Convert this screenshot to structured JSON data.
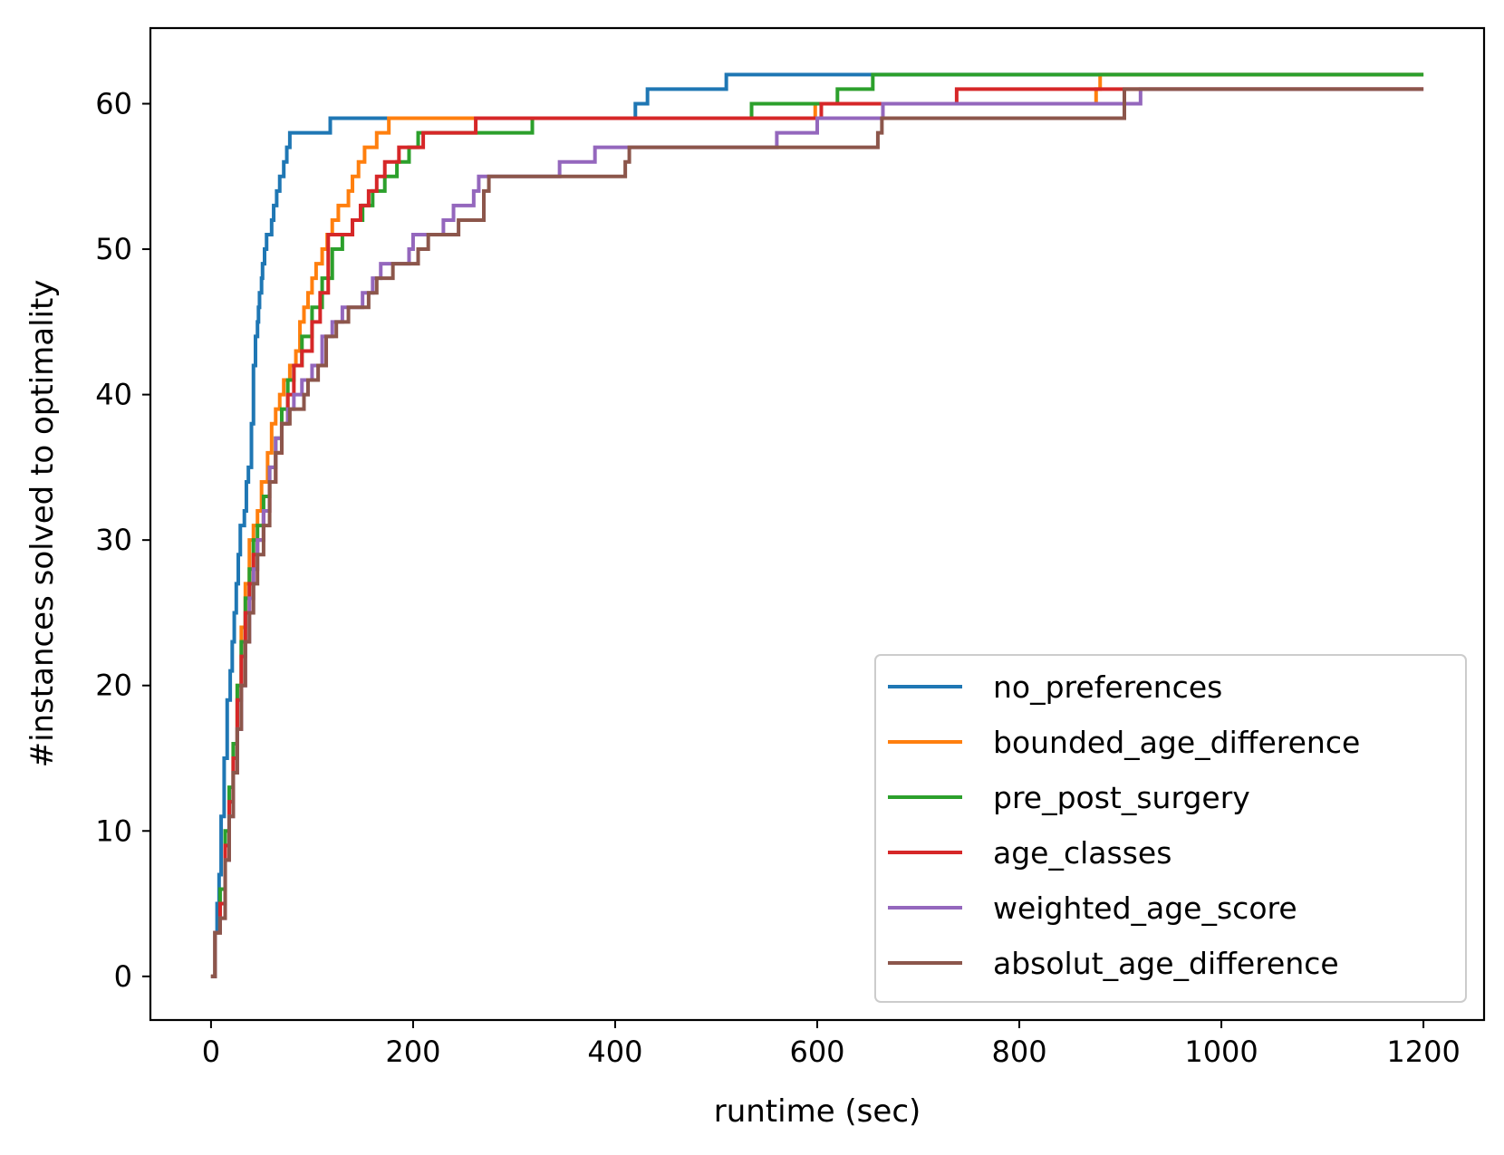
{
  "chart_data": {
    "type": "line",
    "step": "post",
    "title": "",
    "xlabel": "runtime (sec)",
    "ylabel": "#instances solved to optimality",
    "xlim": [
      -60,
      1260
    ],
    "ylim": [
      -3,
      65.2
    ],
    "xticks": [
      0,
      200,
      400,
      600,
      800,
      1000,
      1200
    ],
    "yticks": [
      0,
      10,
      20,
      30,
      40,
      50,
      60
    ],
    "xtick_labels": [
      "0",
      "200",
      "400",
      "600",
      "800",
      "1000",
      "1200"
    ],
    "ytick_labels": [
      "0",
      "10",
      "20",
      "30",
      "40",
      "50",
      "60"
    ],
    "grid": false,
    "legend_position": "lower-right",
    "series": [
      {
        "name": "no_preferences",
        "color": "#1f77b4",
        "x": [
          0,
          4,
          6,
          8,
          10,
          13,
          16,
          19,
          21,
          23,
          25,
          27,
          29,
          31,
          33,
          35,
          37,
          40,
          42,
          44,
          46,
          47,
          48,
          49,
          50,
          51,
          53,
          55,
          58,
          60,
          62,
          65,
          68,
          72,
          75,
          78,
          82,
          85,
          88,
          92,
          96,
          100,
          118,
          122,
          420,
          423,
          432,
          505,
          510,
          1200
        ],
        "y": [
          0,
          3,
          5,
          7,
          11,
          15,
          19,
          21,
          23,
          25,
          27,
          29,
          31,
          31,
          32,
          34,
          35,
          38,
          42,
          44,
          45,
          46,
          47,
          47,
          48,
          49,
          50,
          51,
          51,
          52,
          53,
          54,
          55,
          56,
          57,
          58,
          58,
          58,
          58,
          58,
          58,
          58,
          59,
          59,
          60,
          60,
          61,
          61,
          62,
          62
        ]
      },
      {
        "name": "bounded_age_difference",
        "color": "#ff7f0e",
        "x": [
          0,
          4,
          9,
          14,
          18,
          22,
          26,
          30,
          34,
          38,
          42,
          46,
          50,
          56,
          60,
          64,
          68,
          72,
          78,
          84,
          88,
          92,
          96,
          100,
          104,
          110,
          115,
          120,
          126,
          130,
          136,
          140,
          146,
          152,
          158,
          164,
          170,
          176,
          598,
          602,
          876,
          880,
          1200
        ],
        "y": [
          0,
          3,
          5,
          9,
          12,
          16,
          20,
          24,
          27,
          30,
          31,
          32,
          34,
          36,
          38,
          39,
          40,
          41,
          42,
          43,
          45,
          46,
          47,
          48,
          49,
          50,
          51,
          52,
          53,
          53,
          54,
          55,
          56,
          57,
          57,
          58,
          58,
          59,
          60,
          60,
          61,
          62,
          62
        ]
      },
      {
        "name": "pre_post_surgery",
        "color": "#2ca02c",
        "x": [
          0,
          4,
          9,
          14,
          18,
          22,
          26,
          30,
          34,
          38,
          42,
          46,
          52,
          58,
          64,
          70,
          76,
          82,
          90,
          100,
          110,
          120,
          130,
          140,
          150,
          160,
          172,
          184,
          196,
          200,
          205,
          210,
          260,
          262,
          318,
          322,
          535,
          540,
          600,
          602,
          620,
          625,
          655,
          658,
          1200
        ],
        "y": [
          0,
          3,
          6,
          10,
          13,
          16,
          20,
          23,
          26,
          28,
          30,
          31,
          33,
          35,
          37,
          39,
          41,
          42,
          44,
          46,
          48,
          50,
          51,
          52,
          53,
          54,
          55,
          56,
          57,
          57,
          58,
          58,
          58,
          58,
          59,
          59,
          60,
          60,
          60,
          60,
          61,
          61,
          62,
          62,
          62
        ]
      },
      {
        "name": "age_classes",
        "color": "#d62728",
        "x": [
          0,
          4,
          9,
          14,
          18,
          22,
          26,
          30,
          34,
          38,
          42,
          46,
          52,
          58,
          64,
          70,
          76,
          82,
          90,
          100,
          108,
          116,
          130,
          140,
          148,
          156,
          164,
          172,
          180,
          186,
          190,
          200,
          210,
          218,
          258,
          262,
          600,
          604,
          735,
          738,
          1200
        ],
        "y": [
          0,
          3,
          5,
          9,
          12,
          15,
          19,
          22,
          25,
          27,
          29,
          30,
          32,
          34,
          36,
          38,
          40,
          42,
          43,
          45,
          47,
          51,
          51,
          52,
          53,
          54,
          55,
          56,
          56,
          57,
          57,
          57,
          58,
          58,
          58,
          59,
          59,
          60,
          60,
          61,
          61
        ]
      },
      {
        "name": "weighted_age_score",
        "color": "#9467bd",
        "x": [
          0,
          4,
          9,
          14,
          18,
          22,
          26,
          30,
          34,
          38,
          42,
          46,
          52,
          58,
          64,
          70,
          76,
          82,
          90,
          100,
          110,
          120,
          130,
          140,
          150,
          160,
          168,
          176,
          184,
          196,
          200,
          205,
          210,
          220,
          230,
          240,
          260,
          265,
          270,
          275,
          345,
          350,
          380,
          384,
          420,
          425,
          560,
          564,
          600,
          604,
          640,
          644,
          665,
          668,
          845,
          848,
          860,
          900,
          905,
          920,
          925,
          1200
        ],
        "y": [
          0,
          3,
          4,
          8,
          11,
          14,
          17,
          20,
          23,
          26,
          28,
          30,
          32,
          35,
          37,
          38,
          39,
          40,
          41,
          42,
          44,
          45,
          46,
          46,
          47,
          48,
          49,
          49,
          49,
          50,
          51,
          51,
          51,
          51,
          52,
          53,
          54,
          55,
          55,
          55,
          56,
          56,
          57,
          57,
          57,
          57,
          58,
          58,
          59,
          59,
          59,
          59,
          60,
          60,
          60,
          60,
          60,
          60,
          60,
          61,
          61,
          61
        ]
      },
      {
        "name": "absolut_age_difference",
        "color": "#8c564b",
        "x": [
          0,
          4,
          9,
          14,
          18,
          22,
          26,
          30,
          34,
          38,
          42,
          46,
          52,
          58,
          64,
          70,
          78,
          92,
          96,
          106,
          114,
          124,
          136,
          146,
          156,
          164,
          180,
          196,
          200,
          205,
          215,
          245,
          260,
          270,
          275,
          410,
          414,
          660,
          664,
          900,
          904,
          1200
        ],
        "y": [
          0,
          3,
          4,
          8,
          11,
          14,
          17,
          20,
          23,
          25,
          27,
          29,
          31,
          34,
          36,
          38,
          39,
          40,
          41,
          42,
          44,
          45,
          46,
          46,
          47,
          48,
          49,
          49,
          49,
          50,
          51,
          52,
          52,
          54,
          55,
          56,
          57,
          58,
          59,
          59,
          61,
          61
        ]
      }
    ]
  }
}
